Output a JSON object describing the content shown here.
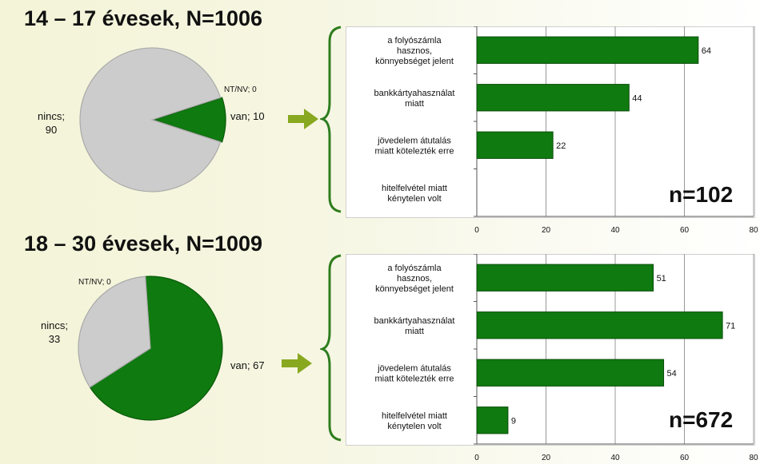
{
  "colors": {
    "green": "#0f7a0f",
    "green_dark": "#0a5a0a",
    "grey": "#cccccc",
    "grey_dark": "#999999",
    "arrow": "#88a820",
    "brace": "#2e7d1e"
  },
  "panels": [
    {
      "title": "14 – 17 évesek, N=1006",
      "n_label": "n=102"
    },
    {
      "title": "18 – 30 évesek, N=1009",
      "n_label": "n=672"
    }
  ],
  "chart_data": [
    {
      "type": "pie",
      "title": "14 – 17 évesek, N=1006",
      "slices": [
        {
          "name": "van",
          "value": 10,
          "label": "van; 10"
        },
        {
          "name": "NT/NV",
          "value": 0,
          "label": "NT/NV; 0"
        },
        {
          "name": "nincs",
          "value": 90,
          "label_lines": [
            "nincs;",
            "90"
          ]
        }
      ]
    },
    {
      "type": "bar",
      "orientation": "horizontal",
      "categories": [
        [
          "a folyószámla",
          "hasznos,",
          "könnyebséget jelent"
        ],
        [
          "bankkártyahasználat",
          "miatt"
        ],
        [
          "jövedelem átutalás",
          "miatt kötelezték erre"
        ],
        [
          "hitelfelvétel miatt",
          "kénytelen volt"
        ]
      ],
      "values": [
        64,
        44,
        22,
        null
      ],
      "value_labels": [
        "64",
        "44",
        "22",
        ""
      ],
      "xlim": [
        0,
        80
      ],
      "xticks": [
        "0",
        "20",
        "40",
        "60",
        "80"
      ],
      "annotation": "n=102"
    },
    {
      "type": "pie",
      "title": "18 – 30 évesek, N=1009",
      "slices": [
        {
          "name": "van",
          "value": 67,
          "label": "van; 67"
        },
        {
          "name": "NT/NV",
          "value": 0,
          "label": "NT/NV; 0"
        },
        {
          "name": "nincs",
          "value": 33,
          "label_lines": [
            "nincs;",
            "33"
          ]
        }
      ]
    },
    {
      "type": "bar",
      "orientation": "horizontal",
      "categories": [
        [
          "a folyószámla",
          "hasznos,",
          "könnyebséget jelent"
        ],
        [
          "bankkártyahasználat",
          "miatt"
        ],
        [
          "jövedelem átutalás",
          "miatt kötelezték erre"
        ],
        [
          "hitelfelvétel miatt",
          "kénytelen volt"
        ]
      ],
      "values": [
        51,
        71,
        54,
        9
      ],
      "value_labels": [
        "51",
        "71",
        "54",
        "9"
      ],
      "xlim": [
        0,
        80
      ],
      "xticks": [
        "0",
        "20",
        "40",
        "60",
        "80"
      ],
      "annotation": "n=672"
    }
  ]
}
